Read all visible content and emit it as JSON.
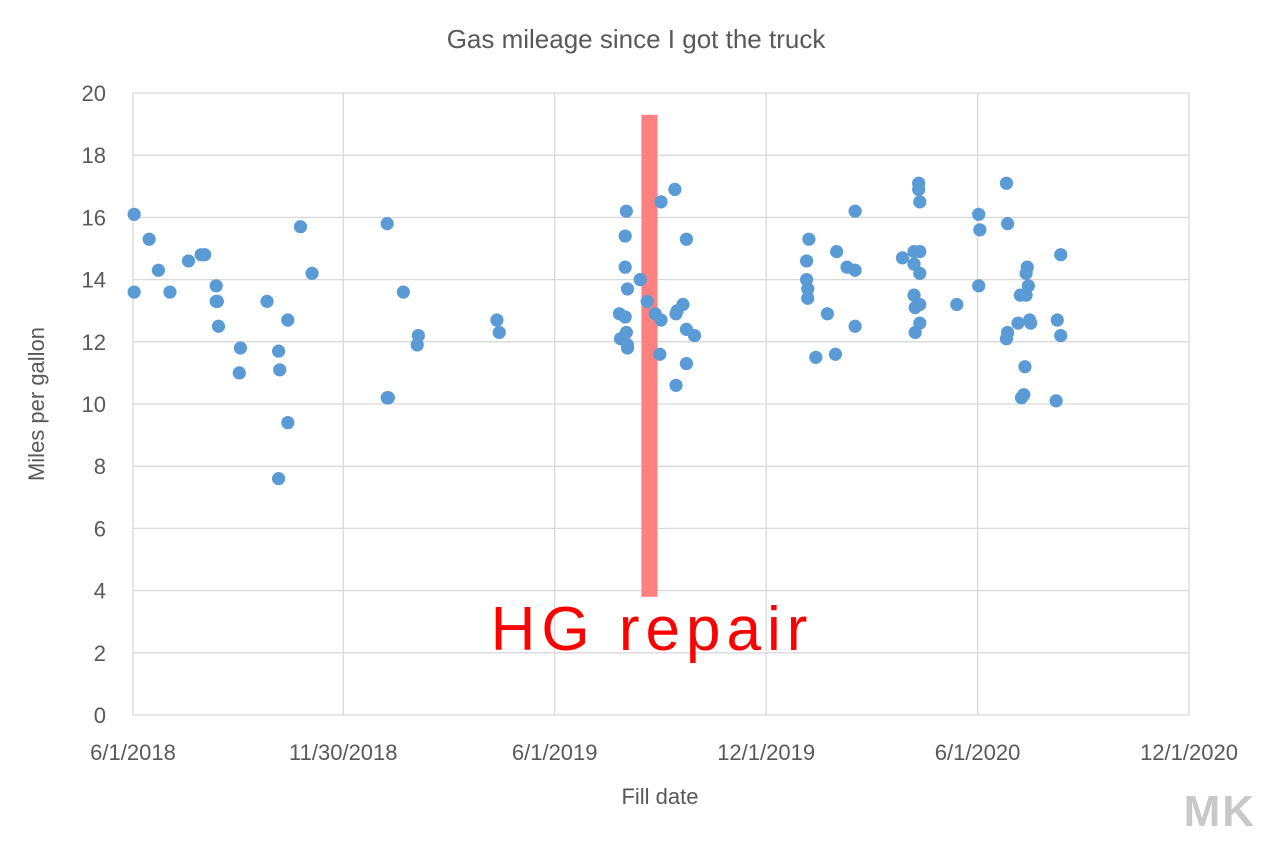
{
  "chart_data": {
    "type": "scatter",
    "title": "Gas mileage since I got the truck",
    "xlabel": "Fill date",
    "ylabel": "Miles per gallon",
    "xlim": [
      "2018-06-01",
      "2020-12-01"
    ],
    "ylim": [
      0,
      20
    ],
    "x_ticks": [
      "2018-06-01",
      "2018-11-30",
      "2019-06-01",
      "2019-12-01",
      "2020-06-01",
      "2020-12-01"
    ],
    "x_tick_labels": [
      "6/1/2018",
      "11/30/2018",
      "6/1/2019",
      "12/1/2019",
      "6/1/2020",
      "12/1/2020"
    ],
    "y_ticks": [
      0,
      2,
      4,
      6,
      8,
      10,
      12,
      14,
      16,
      18,
      20
    ],
    "y_tick_labels": [
      "0",
      "2",
      "4",
      "6",
      "8",
      "10",
      "12",
      "14",
      "16",
      "18",
      "20"
    ],
    "grid": true,
    "legend": "none",
    "marker_color": "#5b9bd5",
    "series": [
      {
        "x": [
          "2018-06-02",
          "2018-06-02",
          "2018-06-15",
          "2018-06-23",
          "2018-07-03",
          "2018-07-19",
          "2018-07-30",
          "2018-08-02",
          "2018-08-12",
          "2018-08-12",
          "2018-08-13",
          "2018-08-14",
          "2018-09-01",
          "2018-09-02",
          "2018-09-25",
          "2018-10-05",
          "2018-10-05",
          "2018-10-06",
          "2018-10-13",
          "2018-10-13",
          "2018-10-24",
          "2018-11-03",
          "2019-01-07",
          "2019-01-07",
          "2019-01-08",
          "2019-01-21",
          "2019-02-02",
          "2019-02-03",
          "2019-04-12",
          "2019-04-14",
          "2019-07-27",
          "2019-07-28",
          "2019-08-01",
          "2019-08-01",
          "2019-08-01",
          "2019-08-02",
          "2019-08-02",
          "2019-08-03",
          "2019-08-03",
          "2019-08-03",
          "2019-08-14",
          "2019-08-20",
          "2019-08-27",
          "2019-08-31",
          "2019-09-01",
          "2019-09-01",
          "2019-09-13",
          "2019-09-14",
          "2019-09-14",
          "2019-09-15",
          "2019-09-20",
          "2019-09-23",
          "2019-09-23",
          "2019-09-23",
          "2019-09-30",
          "2020-01-05",
          "2020-01-05",
          "2020-01-06",
          "2020-01-06",
          "2020-01-07",
          "2020-01-13",
          "2020-01-23",
          "2020-01-30",
          "2020-01-31",
          "2020-02-09",
          "2020-02-16",
          "2020-02-16",
          "2020-02-16",
          "2020-03-28",
          "2020-04-07",
          "2020-04-07",
          "2020-04-07",
          "2020-04-08",
          "2020-04-08",
          "2020-04-11",
          "2020-04-11",
          "2020-04-12",
          "2020-04-12",
          "2020-04-12",
          "2020-04-12",
          "2020-04-12",
          "2020-05-14",
          "2020-06-02",
          "2020-06-02",
          "2020-06-03",
          "2020-06-26",
          "2020-06-26",
          "2020-06-27",
          "2020-06-27",
          "2020-07-06",
          "2020-07-08",
          "2020-07-09",
          "2020-07-11",
          "2020-07-12",
          "2020-07-13",
          "2020-07-13",
          "2020-07-14",
          "2020-07-15",
          "2020-07-16",
          "2020-07-17",
          "2020-08-08",
          "2020-08-09",
          "2020-08-12",
          "2020-08-12"
        ],
        "y": [
          13.6,
          16.1,
          15.3,
          14.3,
          13.6,
          14.6,
          14.8,
          14.8,
          13.8,
          13.3,
          13.3,
          12.5,
          11.0,
          11.8,
          13.3,
          11.7,
          7.6,
          11.1,
          12.7,
          9.4,
          15.7,
          14.2,
          15.8,
          10.2,
          10.2,
          13.6,
          11.9,
          12.2,
          12.7,
          12.3,
          12.9,
          12.1,
          12.8,
          14.4,
          15.4,
          16.2,
          12.3,
          13.7,
          11.8,
          11.9,
          14.0,
          13.3,
          12.9,
          11.6,
          16.5,
          12.7,
          16.9,
          12.9,
          10.6,
          13.0,
          13.2,
          12.4,
          11.3,
          15.3,
          12.2,
          14.0,
          14.6,
          13.4,
          13.7,
          15.3,
          11.5,
          12.9,
          11.6,
          14.9,
          14.4,
          14.3,
          16.2,
          12.5,
          14.7,
          13.5,
          14.9,
          14.5,
          12.3,
          13.1,
          17.1,
          16.9,
          16.5,
          13.2,
          12.6,
          14.9,
          14.2,
          13.2,
          16.1,
          13.8,
          15.6,
          12.1,
          17.1,
          12.3,
          15.8,
          12.6,
          13.5,
          10.2,
          10.3,
          11.2,
          14.2,
          13.5,
          14.4,
          13.8,
          12.7,
          12.6,
          10.1,
          12.7,
          14.8,
          12.2
        ],
        "note": ""
      }
    ],
    "annotations": [
      {
        "text": "HG repair",
        "color": "#ff0000"
      }
    ],
    "highlight_band": {
      "x_start": "2019-08-15",
      "x_end": "2019-08-29",
      "y_start": 3.8,
      "y_end": 19.3,
      "color": "#ff8080"
    }
  },
  "watermark": "MK"
}
